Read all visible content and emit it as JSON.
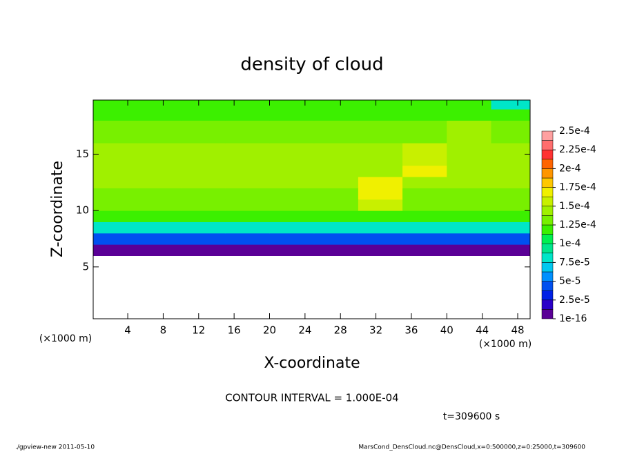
{
  "chart_data": {
    "type": "heatmap",
    "title": "density of cloud",
    "x_label": "X-coordinate",
    "y_label": "Z-coordinate",
    "x_unit_label": "(×1000 m)",
    "y_unit_label": "(×1000 m)",
    "note": "CONTOUR INTERVAL = 1.000E-04",
    "time_label": "t=309600 s",
    "footer_left": "./gpview-new  2011-05-10",
    "footer_right": "MarsCond_DensCloud.nc@DensCloud,x=0:500000,z=0:25000,t=309600",
    "xlim": [
      0.1,
      49.4
    ],
    "ylim": [
      0.4,
      19.8
    ],
    "xticks": [
      4,
      8,
      12,
      16,
      20,
      24,
      28,
      32,
      36,
      40,
      44,
      48
    ],
    "yticks": [
      5,
      10,
      15
    ],
    "x": [
      2.5,
      7.5,
      12.5,
      17.5,
      22.5,
      27.5,
      32.5,
      37.5,
      42.5,
      47.5
    ],
    "z": [
      6.5,
      7.5,
      8.5,
      9.5,
      10.5,
      11.5,
      12.5,
      13.5,
      14.5,
      15.5,
      16.5,
      17.5,
      18.5,
      19.5
    ],
    "values": [
      [
        1e-05,
        1e-05,
        1e-05,
        1e-05,
        1e-05,
        1e-05,
        1e-05,
        1e-05,
        1e-05,
        1e-05
      ],
      [
        4e-05,
        4e-05,
        4e-05,
        4e-05,
        4e-05,
        4e-05,
        4e-05,
        4e-05,
        4e-05,
        4e-05
      ],
      [
        8e-05,
        8e-05,
        8e-05,
        8e-05,
        8e-05,
        8e-05,
        8e-05,
        8e-05,
        8e-05,
        8e-05
      ],
      [
        0.000115,
        0.000115,
        0.000115,
        0.000115,
        0.000115,
        0.000115,
        0.000115,
        0.000115,
        0.000115,
        0.000115
      ],
      [
        0.00013,
        0.00013,
        0.00013,
        0.00013,
        0.00013,
        0.00013,
        0.00016,
        0.00013,
        0.00013,
        0.00013
      ],
      [
        0.000135,
        0.000135,
        0.000135,
        0.000135,
        0.000135,
        0.000135,
        0.00017,
        0.000135,
        0.000135,
        0.000135
      ],
      [
        0.00014,
        0.00014,
        0.00014,
        0.00014,
        0.00014,
        0.00014,
        0.000175,
        0.00014,
        0.00014,
        0.00014
      ],
      [
        0.00014,
        0.00014,
        0.00014,
        0.00014,
        0.00014,
        0.00014,
        0.00014,
        0.000165,
        0.00014,
        0.00014
      ],
      [
        0.00014,
        0.00014,
        0.00014,
        0.00014,
        0.00014,
        0.00014,
        0.00014,
        0.00016,
        0.00014,
        0.00014
      ],
      [
        0.000138,
        0.000138,
        0.000138,
        0.000138,
        0.000138,
        0.000138,
        0.000138,
        0.000155,
        0.000138,
        0.000138
      ],
      [
        0.000135,
        0.000135,
        0.000135,
        0.000135,
        0.000135,
        0.000135,
        0.000135,
        0.000135,
        0.00015,
        0.000135
      ],
      [
        0.00013,
        0.00013,
        0.00013,
        0.00013,
        0.00013,
        0.00013,
        0.00013,
        0.00013,
        0.000145,
        0.00013
      ],
      [
        0.000125,
        0.000125,
        0.000125,
        0.000125,
        0.000125,
        0.000125,
        0.000125,
        0.000125,
        0.000125,
        0.000125
      ],
      [
        0.00012,
        0.00012,
        0.00012,
        0.00012,
        0.00012,
        0.00012,
        0.00012,
        0.00012,
        0.00012,
        8e-05
      ]
    ],
    "colors": [
      "#5a0096",
      "#2a00c8",
      "#0020e6",
      "#0050f0",
      "#0090ff",
      "#00c8f0",
      "#00e6c8",
      "#00e68c",
      "#00f050",
      "#3cf000",
      "#78f000",
      "#a0f000",
      "#c8f000",
      "#f0f000",
      "#ffc800",
      "#ff9600",
      "#ff6400",
      "#ff3232",
      "#ff6e6e",
      "#ffa0a0"
    ],
    "colorbar_ticks": [
      {
        "value": 1e-16,
        "label": "1e-16"
      },
      {
        "value": 2.5e-05,
        "label": "2.5e-5"
      },
      {
        "value": 5e-05,
        "label": "5e-5"
      },
      {
        "value": 7.5e-05,
        "label": "7.5e-5"
      },
      {
        "value": 0.0001,
        "label": "1e-4"
      },
      {
        "value": 0.000125,
        "label": "1.25e-4"
      },
      {
        "value": 0.00015,
        "label": "1.5e-4"
      },
      {
        "value": 0.000175,
        "label": "1.75e-4"
      },
      {
        "value": 0.0002,
        "label": "2e-4"
      },
      {
        "value": 0.000225,
        "label": "2.25e-4"
      },
      {
        "value": 0.00025,
        "label": "2.5e-4"
      }
    ]
  }
}
